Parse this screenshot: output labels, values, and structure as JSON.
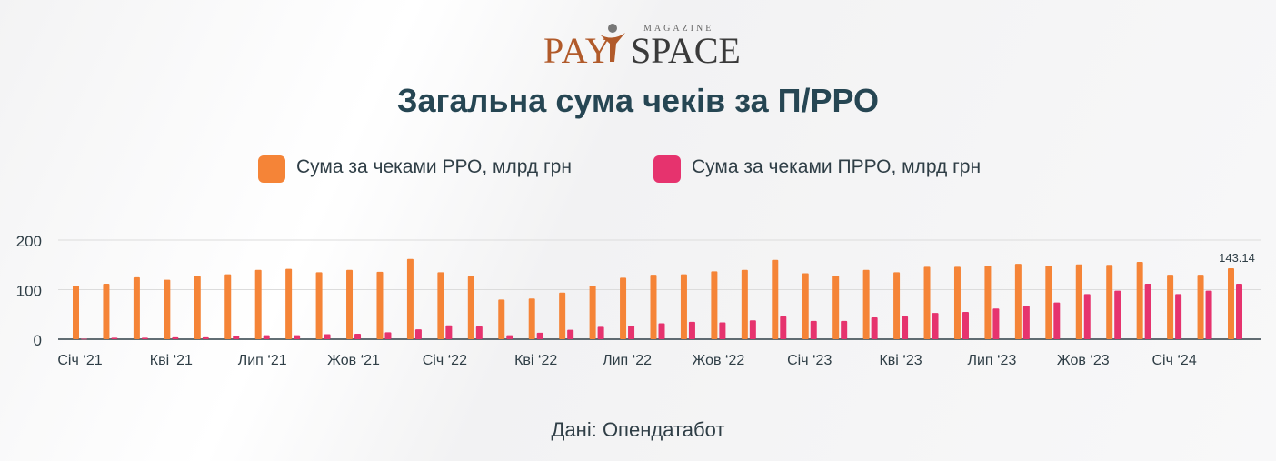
{
  "logo": {
    "brand_left": "PAY",
    "brand_right": "SPACE",
    "tagline": "MAGAZINE"
  },
  "title": "Загальна сума чеків за П/РРО",
  "source": "Дані: Опендатабот",
  "colors": {
    "rro": "#f58437",
    "prro": "#e6336e",
    "title": "#264653",
    "axis": "#2f3e46"
  },
  "chart_data": {
    "type": "bar",
    "title": "Загальна сума чеків за П/РРО",
    "legend_position": "top",
    "grid": true,
    "ylim": [
      0,
      200
    ],
    "yticks": [
      0,
      100,
      200
    ],
    "categories": [
      "Січ '21",
      "Лют '21",
      "Бер '21",
      "Кві '21",
      "Тра '21",
      "Чер '21",
      "Лип '21",
      "Сер '21",
      "Вер '21",
      "Жов '21",
      "Лис '21",
      "Гру '21",
      "Січ '22",
      "Лют '22",
      "Бер '22",
      "Кві '22",
      "Тра '22",
      "Чер '22",
      "Лип '22",
      "Сер '22",
      "Вер '22",
      "Жов '22",
      "Лис '22",
      "Гру '22",
      "Січ '23",
      "Лют '23",
      "Бер '23",
      "Кві '23",
      "Тра '23",
      "Чер '23",
      "Лип '23",
      "Сер '23",
      "Вер '23",
      "Жов '23",
      "Лис '23",
      "Гру '23",
      "Січ '24",
      "Лют '24",
      "Бер '24"
    ],
    "x_tick_labels": [
      {
        "index": 0,
        "label": "Січ ‘21"
      },
      {
        "index": 3,
        "label": "Кві ‘21"
      },
      {
        "index": 6,
        "label": "Лип ‘21"
      },
      {
        "index": 9,
        "label": "Жов ‘21"
      },
      {
        "index": 12,
        "label": "Січ ‘22"
      },
      {
        "index": 15,
        "label": "Кві ‘22"
      },
      {
        "index": 18,
        "label": "Лип ‘22"
      },
      {
        "index": 21,
        "label": "Жов ‘22"
      },
      {
        "index": 24,
        "label": "Січ ‘23"
      },
      {
        "index": 27,
        "label": "Кві ‘23"
      },
      {
        "index": 30,
        "label": "Лип ‘23"
      },
      {
        "index": 33,
        "label": "Жов ‘23"
      },
      {
        "index": 36,
        "label": "Січ ‘24"
      }
    ],
    "series": [
      {
        "name": "Сума за чеками РРО, млрд грн",
        "color": "#f58437",
        "values": [
          108,
          112,
          125,
          120,
          127,
          131,
          140,
          142,
          135,
          140,
          136,
          162,
          135,
          127,
          80,
          82,
          94,
          108,
          124,
          130,
          131,
          137,
          140,
          160,
          133,
          128,
          140,
          135,
          146,
          146,
          148,
          152,
          148,
          151,
          150,
          156,
          130,
          130,
          143.14
        ]
      },
      {
        "name": "Сума за чеками ПРРО, млрд грн",
        "color": "#e6336e",
        "values": [
          1,
          3,
          3,
          4,
          4,
          7,
          8,
          8,
          10,
          11,
          14,
          20,
          28,
          26,
          8,
          13,
          19,
          25,
          27,
          32,
          35,
          34,
          38,
          46,
          37,
          37,
          44,
          46,
          53,
          55,
          62,
          67,
          74,
          91,
          98,
          112,
          91,
          98,
          112
        ]
      }
    ],
    "data_labels": [
      {
        "series": 0,
        "index": 38,
        "text": "143.14"
      }
    ]
  }
}
